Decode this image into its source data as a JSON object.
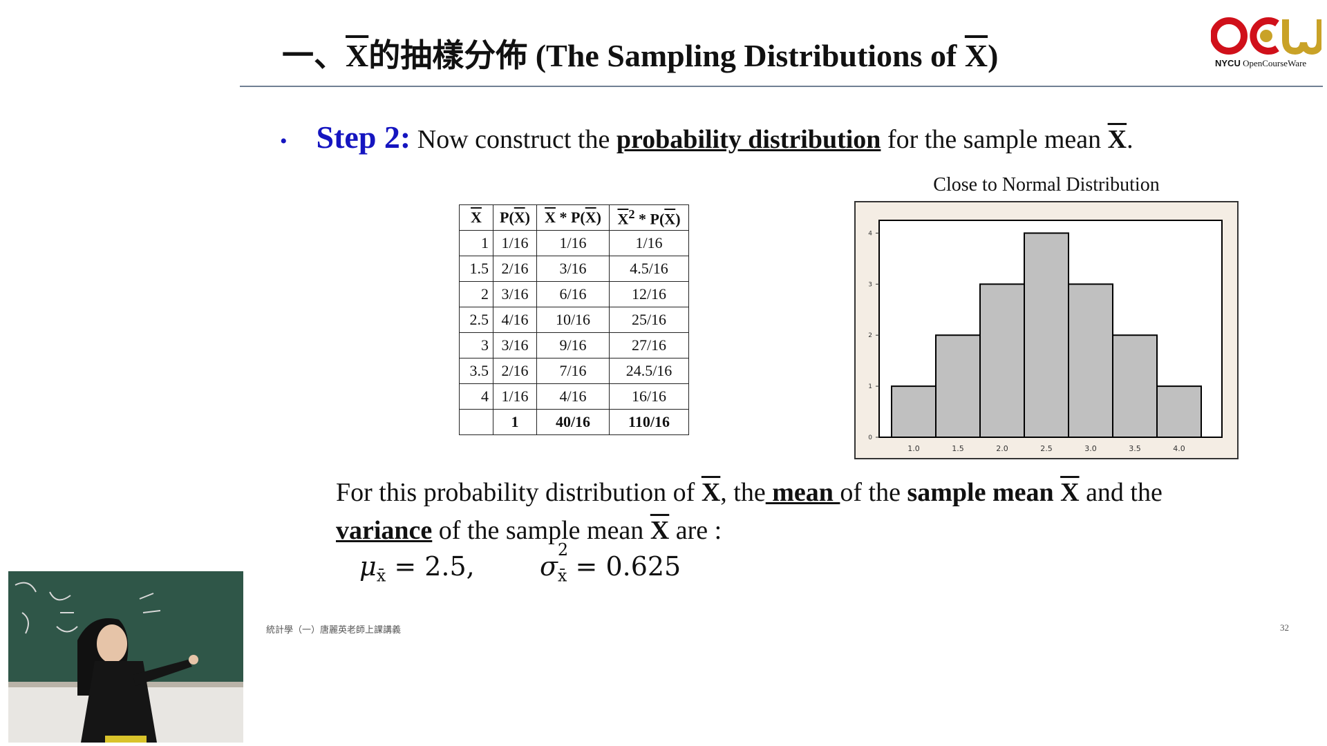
{
  "slide": {
    "title_prefix": "一、",
    "title_xbar": "X",
    "title_mid": "的抽樣分佈 (The Sampling Distributions of ",
    "title_xbar2": "X",
    "title_suffix": ")"
  },
  "logo": {
    "brand": "NYCU",
    "text": "OpenCourseWare",
    "colors": {
      "red": "#d0101a",
      "gold": "#c9a227"
    }
  },
  "step": {
    "bullet": "•",
    "label": "Step 2:",
    "text1": " Now construct the ",
    "keyword": "probability distribution",
    "text2": " for the sample mean ",
    "xbar": "X",
    "end": "."
  },
  "table": {
    "headers": [
      "X",
      "P(X)",
      "X * P(X)",
      "X2 * P(X)"
    ],
    "rows": [
      [
        "1",
        "1/16",
        "1/16",
        "1/16"
      ],
      [
        "1.5",
        "2/16",
        "3/16",
        "4.5/16"
      ],
      [
        "2",
        "3/16",
        "6/16",
        "12/16"
      ],
      [
        "2.5",
        "4/16",
        "10/16",
        "25/16"
      ],
      [
        "3",
        "3/16",
        "9/16",
        "27/16"
      ],
      [
        "3.5",
        "2/16",
        "7/16",
        "24.5/16"
      ],
      [
        "4",
        "1/16",
        "4/16",
        "16/16"
      ],
      [
        "",
        "1",
        "40/16",
        "110/16"
      ]
    ]
  },
  "chart_data": {
    "type": "bar",
    "title": "Close to Normal Distribution",
    "categories": [
      "1.0",
      "1.5",
      "2.0",
      "2.5",
      "3.0",
      "3.5",
      "4.0"
    ],
    "values": [
      1,
      2,
      3,
      4,
      3,
      2,
      1
    ],
    "yticks": [
      "0",
      "1",
      "2",
      "3",
      "4"
    ],
    "ylim": [
      0,
      4.25
    ],
    "bar_color": "#c0c0c0",
    "background": "#f4ede4"
  },
  "paragraph": {
    "p1": "For this probability distribution of ",
    "xbar1": "X",
    "p2": ", the",
    "mean": " mean ",
    "p3": "of the ",
    "sample_mean": "sample mean ",
    "xbar2": "X",
    "p4": " and the",
    "variance": "variance",
    "p5": " of the sample mean ",
    "xbar3": "X",
    "p6": " are :"
  },
  "formula": {
    "mu": "μ",
    "mu_sub": "x̄",
    "mu_val": " = 2.5,",
    "sigma": "σ",
    "sigma_sup": "2",
    "sigma_sub": "x̄",
    "sigma_val": " = 0.625"
  },
  "footer": {
    "course": "統計學（一）唐麗英老師上課講義",
    "page": "32"
  }
}
